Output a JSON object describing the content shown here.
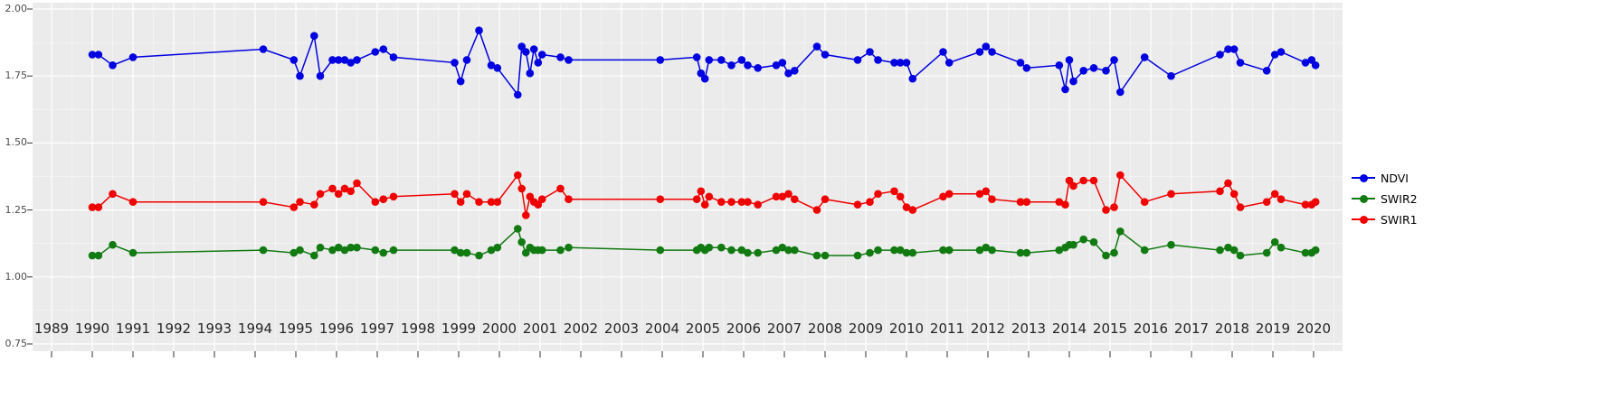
{
  "figure": {
    "background": "#FFFFFF",
    "panel_background": "#EBEBEB",
    "gridline_color": "#FFFFFF",
    "tick_color": "#333333",
    "y_text_color": "#4D4D4D",
    "x_text_color": "#262626"
  },
  "legend": {
    "items": [
      {
        "label": "NDVI",
        "color": "#0000E0"
      },
      {
        "label": "SWIR2",
        "color": "#117A11"
      },
      {
        "label": "SWIR1",
        "color": "#F00000"
      }
    ]
  },
  "chart_data": {
    "type": "line",
    "title": "",
    "xlabel": "",
    "ylabel": "",
    "grid": true,
    "legend_position": "right",
    "xlim": [
      1988.55,
      2020.7
    ],
    "ylim": [
      0.73,
      2.02
    ],
    "y_ticks": [
      2.0,
      1.75,
      1.5,
      1.25,
      1.0,
      0.75
    ],
    "y_tick_labels": [
      "2.00",
      "1.75",
      "1.50",
      "1.25",
      "1.00",
      "0.75"
    ],
    "x_tick_labels": [
      "1989",
      "1990",
      "1991",
      "1992",
      "1993",
      "1994",
      "1995",
      "1996",
      "1997",
      "1998",
      "1999",
      "2000",
      "2001",
      "2002",
      "2003",
      "2004",
      "2005",
      "2006",
      "2007",
      "2008",
      "2009",
      "2010",
      "2011",
      "2012",
      "2013",
      "2014",
      "2015",
      "2016",
      "2017",
      "2018",
      "2019",
      "2020"
    ],
    "x": [
      1990.0,
      1990.15,
      1990.5,
      1991.0,
      1994.2,
      1994.95,
      1995.1,
      1995.45,
      1995.6,
      1995.9,
      1996.05,
      1996.2,
      1996.35,
      1996.5,
      1996.95,
      1997.15,
      1997.4,
      1998.9,
      1999.05,
      1999.2,
      1999.5,
      1999.8,
      1999.95,
      2000.45,
      2000.55,
      2000.65,
      2000.75,
      2000.85,
      2000.95,
      2001.05,
      2001.5,
      2001.7,
      2003.95,
      2004.85,
      2004.95,
      2005.05,
      2005.15,
      2005.45,
      2005.7,
      2005.95,
      2006.1,
      2006.35,
      2006.8,
      2006.95,
      2007.1,
      2007.25,
      2007.8,
      2008.0,
      2008.8,
      2009.1,
      2009.3,
      2009.7,
      2009.85,
      2010.0,
      2010.15,
      2010.9,
      2011.05,
      2011.8,
      2011.95,
      2012.1,
      2012.8,
      2012.95,
      2013.75,
      2013.9,
      2014.0,
      2014.1,
      2014.35,
      2014.6,
      2014.9,
      2015.1,
      2015.25,
      2015.85,
      2016.5,
      2017.7,
      2017.9,
      2018.05,
      2018.2,
      2018.85,
      2019.05,
      2019.2,
      2019.8,
      2019.95,
      2020.05
    ],
    "series": [
      {
        "name": "NDVI",
        "color": "#0000E0",
        "values": [
          1.83,
          1.83,
          1.79,
          1.82,
          1.85,
          1.81,
          1.75,
          1.9,
          1.75,
          1.81,
          1.81,
          1.81,
          1.8,
          1.81,
          1.84,
          1.85,
          1.82,
          1.8,
          1.73,
          1.81,
          1.92,
          1.79,
          1.78,
          1.68,
          1.86,
          1.84,
          1.76,
          1.85,
          1.8,
          1.83,
          1.82,
          1.81,
          1.81,
          1.82,
          1.76,
          1.74,
          1.81,
          1.81,
          1.79,
          1.81,
          1.79,
          1.78,
          1.79,
          1.8,
          1.76,
          1.77,
          1.86,
          1.83,
          1.81,
          1.84,
          1.81,
          1.8,
          1.8,
          1.8,
          1.74,
          1.84,
          1.8,
          1.84,
          1.86,
          1.84,
          1.8,
          1.78,
          1.79,
          1.7,
          1.81,
          1.73,
          1.77,
          1.78,
          1.77,
          1.81,
          1.69,
          1.82,
          1.75,
          1.83,
          1.85,
          1.85,
          1.8,
          1.77,
          1.83,
          1.84,
          1.8,
          1.81,
          1.79
        ]
      },
      {
        "name": "SWIR2",
        "color": "#117A11",
        "values": [
          1.08,
          1.08,
          1.12,
          1.09,
          1.1,
          1.09,
          1.1,
          1.08,
          1.11,
          1.1,
          1.11,
          1.1,
          1.11,
          1.11,
          1.1,
          1.09,
          1.1,
          1.1,
          1.09,
          1.09,
          1.08,
          1.1,
          1.11,
          1.18,
          1.13,
          1.09,
          1.11,
          1.1,
          1.1,
          1.1,
          1.1,
          1.11,
          1.1,
          1.1,
          1.11,
          1.1,
          1.11,
          1.11,
          1.1,
          1.1,
          1.09,
          1.09,
          1.1,
          1.11,
          1.1,
          1.1,
          1.08,
          1.08,
          1.08,
          1.09,
          1.1,
          1.1,
          1.1,
          1.09,
          1.09,
          1.1,
          1.1,
          1.1,
          1.11,
          1.1,
          1.09,
          1.09,
          1.1,
          1.11,
          1.12,
          1.12,
          1.14,
          1.13,
          1.08,
          1.09,
          1.17,
          1.1,
          1.12,
          1.1,
          1.11,
          1.1,
          1.08,
          1.09,
          1.13,
          1.11,
          1.09,
          1.09,
          1.1
        ]
      },
      {
        "name": "SWIR1",
        "color": "#F00000",
        "values": [
          1.26,
          1.26,
          1.31,
          1.28,
          1.28,
          1.26,
          1.28,
          1.27,
          1.31,
          1.33,
          1.31,
          1.33,
          1.32,
          1.35,
          1.28,
          1.29,
          1.3,
          1.31,
          1.28,
          1.31,
          1.28,
          1.28,
          1.28,
          1.38,
          1.33,
          1.23,
          1.3,
          1.28,
          1.27,
          1.29,
          1.33,
          1.29,
          1.29,
          1.29,
          1.32,
          1.27,
          1.3,
          1.28,
          1.28,
          1.28,
          1.28,
          1.27,
          1.3,
          1.3,
          1.31,
          1.29,
          1.25,
          1.29,
          1.27,
          1.28,
          1.31,
          1.32,
          1.3,
          1.26,
          1.25,
          1.3,
          1.31,
          1.31,
          1.32,
          1.29,
          1.28,
          1.28,
          1.28,
          1.27,
          1.36,
          1.34,
          1.36,
          1.36,
          1.25,
          1.26,
          1.38,
          1.28,
          1.31,
          1.32,
          1.35,
          1.31,
          1.26,
          1.28,
          1.31,
          1.29,
          1.27,
          1.27,
          1.28
        ]
      }
    ]
  }
}
